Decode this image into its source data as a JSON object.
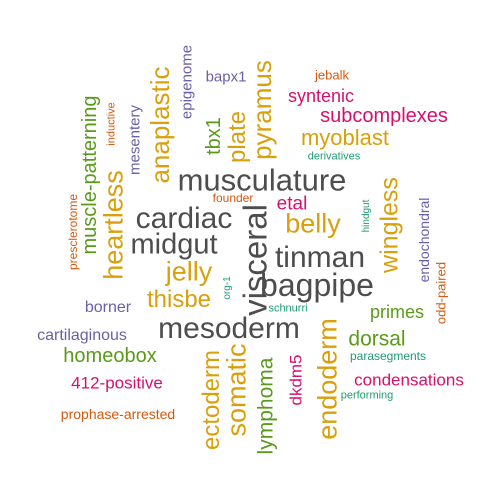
{
  "colors": {
    "gray": "#4d4d4d",
    "gold": "#d9a00b",
    "green": "#5a9a1a",
    "magenta": "#d6106f",
    "purple": "#6a5fa8",
    "orange": "#d45a0f",
    "teal": "#1f9a72"
  },
  "words": [
    {
      "text": "musculature",
      "color": "gray"
    },
    {
      "text": "mesoderm",
      "color": "gray"
    },
    {
      "text": "visceral",
      "color": "gray"
    },
    {
      "text": "bagpipe",
      "color": "gray"
    },
    {
      "text": "cardiac",
      "color": "gray"
    },
    {
      "text": "tinman",
      "color": "gray"
    },
    {
      "text": "midgut",
      "color": "gray"
    },
    {
      "text": "anaplastic",
      "color": "gold"
    },
    {
      "text": "pyramus",
      "color": "gold"
    },
    {
      "text": "plate",
      "color": "gold"
    },
    {
      "text": "myoblast",
      "color": "gold"
    },
    {
      "text": "belly",
      "color": "gold"
    },
    {
      "text": "wingless",
      "color": "gold"
    },
    {
      "text": "jelly",
      "color": "gold"
    },
    {
      "text": "thisbe",
      "color": "gold"
    },
    {
      "text": "ectoderm",
      "color": "gold"
    },
    {
      "text": "heartless",
      "color": "gold"
    },
    {
      "text": "endoderm",
      "color": "gold"
    },
    {
      "text": "somatic",
      "color": "gold"
    },
    {
      "text": "muscle-patterning",
      "color": "green"
    },
    {
      "text": "tbx1",
      "color": "green"
    },
    {
      "text": "homeobox",
      "color": "green"
    },
    {
      "text": "dorsal",
      "color": "green"
    },
    {
      "text": "primes",
      "color": "green"
    },
    {
      "text": "lymphoma",
      "color": "green"
    },
    {
      "text": "syntenic",
      "color": "magenta"
    },
    {
      "text": "subcomplexes",
      "color": "magenta"
    },
    {
      "text": "etal",
      "color": "magenta"
    },
    {
      "text": "412-positive",
      "color": "magenta"
    },
    {
      "text": "condensations",
      "color": "magenta"
    },
    {
      "text": "dkdm5",
      "color": "magenta"
    },
    {
      "text": "epigenome",
      "color": "purple"
    },
    {
      "text": "bapx1",
      "color": "purple"
    },
    {
      "text": "mesentery",
      "color": "purple"
    },
    {
      "text": "borner",
      "color": "purple"
    },
    {
      "text": "cartilaginous",
      "color": "purple"
    },
    {
      "text": "endochondral",
      "color": "purple"
    },
    {
      "text": "jebalk",
      "color": "orange"
    },
    {
      "text": "inductive",
      "color": "orange"
    },
    {
      "text": "founder",
      "color": "orange"
    },
    {
      "text": "presclerotome",
      "color": "orange"
    },
    {
      "text": "odd-paired",
      "color": "orange"
    },
    {
      "text": "prophase-arrested",
      "color": "orange"
    },
    {
      "text": "derivatives",
      "color": "teal"
    },
    {
      "text": "hindgut",
      "color": "teal"
    },
    {
      "text": "org-1",
      "color": "teal"
    },
    {
      "text": "schnurri",
      "color": "teal"
    },
    {
      "text": "parasegments",
      "color": "teal"
    },
    {
      "text": "performing",
      "color": "teal"
    }
  ]
}
